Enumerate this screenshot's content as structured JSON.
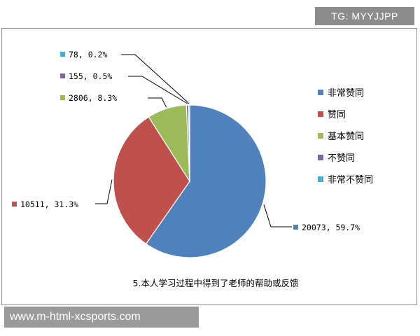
{
  "watermark_top": "TG: MYYJJPP",
  "watermark_bottom": "www.m-html-xcsports.com",
  "chart_data": {
    "type": "pie",
    "title": "5.本人学习过程中得到了老师的帮助或反馈",
    "legend_position": "right",
    "slices": [
      {
        "name": "非常赞同",
        "value": 20073,
        "percent": "59.7%",
        "label": "20073, 59.7%",
        "color": "#4f81bd"
      },
      {
        "name": "赞同",
        "value": 10511,
        "percent": "31.3%",
        "label": "10511, 31.3%",
        "color": "#c0504d"
      },
      {
        "name": "基本赞同",
        "value": 2806,
        "percent": "8.3%",
        "label": "2806, 8.3%",
        "color": "#9bbb59"
      },
      {
        "name": "不赞同",
        "value": 155,
        "percent": "0.5%",
        "label": "155, 0.5%",
        "color": "#8064a2"
      },
      {
        "name": "非常不赞同",
        "value": 78,
        "percent": "0.2%",
        "label": "78, 0.2%",
        "color": "#4bacc6"
      }
    ]
  }
}
